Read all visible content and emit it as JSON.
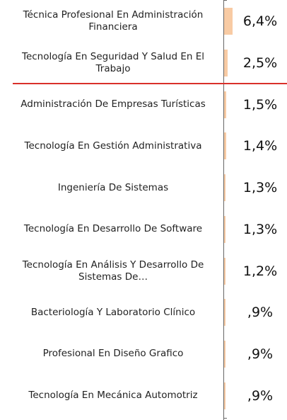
{
  "chart_data": {
    "type": "bar",
    "orientation": "horizontal",
    "categories": [
      "Técnica Profesional En Administración Financiera",
      "Tecnología En Seguridad Y Salud En El Trabajo",
      "Administración De Empresas Turísticas",
      "Tecnología En Gestión Administrativa",
      "Ingeniería De Sistemas",
      "Tecnología En Desarrollo De Software",
      "Tecnología En Análisis Y Desarrollo De Sistemas De…",
      "Bacteriología Y Laboratorio Clínico",
      "Profesional En Diseño Grafico",
      "Tecnología En Mecánica Automotriz"
    ],
    "values": [
      6.4,
      2.5,
      1.5,
      1.4,
      1.3,
      1.3,
      1.2,
      0.9,
      0.9,
      0.9
    ],
    "value_labels": [
      "6,4%",
      "2,5%",
      "1,5%",
      "1,4%",
      "1,3%",
      "1,3%",
      "1,2%",
      ",9%",
      ",9%",
      ",9%"
    ],
    "color": "#f8cba4",
    "xlim": [
      0,
      34
    ]
  }
}
